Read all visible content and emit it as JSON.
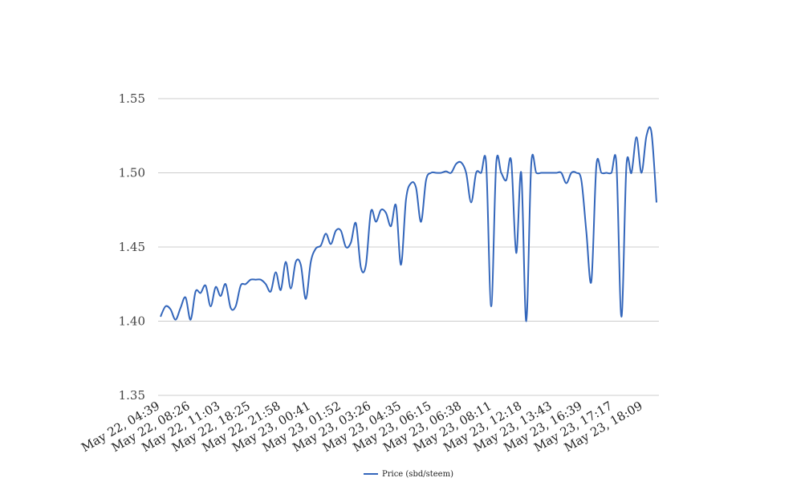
{
  "colors": {
    "series": "#3366bb",
    "grid": "#cccccc"
  },
  "chart_data": {
    "type": "line",
    "title": "",
    "xlabel": "",
    "ylabel": "",
    "ylim": [
      1.35,
      1.55
    ],
    "y_ticks": [
      "1.35",
      "1.40",
      "1.45",
      "1.50",
      "1.55"
    ],
    "grid": true,
    "legend_position": "bottom-center",
    "x_tick_labels": [
      "May 22, 04:39",
      "May 22, 08:26",
      "May 22, 11:03",
      "May 22, 18:25",
      "May 22, 21:58",
      "May 23, 00:41",
      "May 23, 01:52",
      "May 23, 03:26",
      "May 23, 04:35",
      "May 23, 06:15",
      "May 23, 06:38",
      "May 23, 08:11",
      "May 23, 12:18",
      "May 23, 13:43",
      "May 23, 16:39",
      "May 23, 17:17",
      "May 23, 18:09"
    ],
    "series": [
      {
        "name": "Price (sbd/steem)",
        "values": [
          1.403,
          1.41,
          1.408,
          1.401,
          1.409,
          1.416,
          1.401,
          1.42,
          1.419,
          1.424,
          1.41,
          1.423,
          1.417,
          1.425,
          1.409,
          1.41,
          1.424,
          1.425,
          1.428,
          1.428,
          1.428,
          1.425,
          1.42,
          1.433,
          1.421,
          1.44,
          1.422,
          1.44,
          1.438,
          1.415,
          1.44,
          1.449,
          1.451,
          1.459,
          1.452,
          1.461,
          1.461,
          1.45,
          1.453,
          1.466,
          1.436,
          1.438,
          1.474,
          1.467,
          1.475,
          1.473,
          1.464,
          1.478,
          1.438,
          1.482,
          1.493,
          1.49,
          1.467,
          1.495,
          1.5,
          1.5,
          1.5,
          1.501,
          1.5,
          1.506,
          1.507,
          1.5,
          1.48,
          1.5,
          1.5,
          1.506,
          1.41,
          1.506,
          1.5,
          1.495,
          1.508,
          1.446,
          1.5,
          1.4,
          1.506,
          1.5,
          1.5,
          1.5,
          1.5,
          1.5,
          1.5,
          1.493,
          1.5,
          1.5,
          1.495,
          1.46,
          1.427,
          1.505,
          1.5,
          1.5,
          1.5,
          1.506,
          1.403,
          1.505,
          1.5,
          1.524,
          1.5,
          1.525,
          1.527,
          1.48
        ]
      }
    ]
  }
}
